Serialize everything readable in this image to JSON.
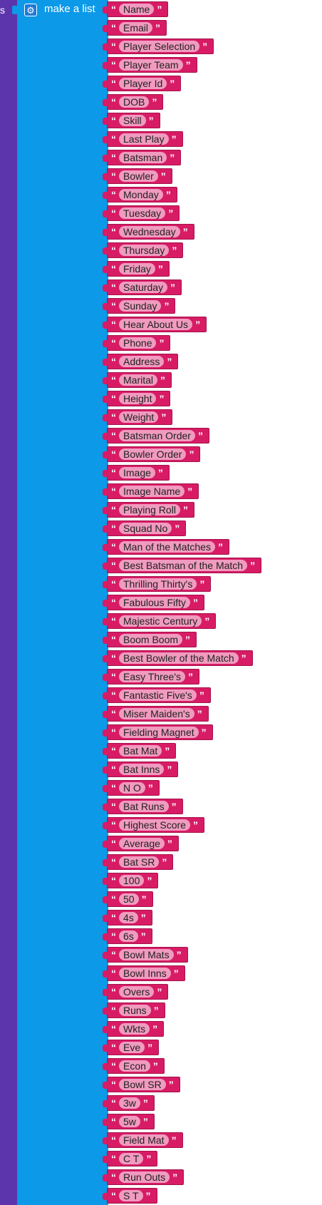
{
  "left_block": {
    "label": "s",
    "color": "#5c35ad"
  },
  "list_block": {
    "title": "make a list",
    "settings_icon": "gear-icon",
    "color": "#0b99e8"
  },
  "item_color": "#d81b65",
  "quote_open": "“",
  "quote_close": "”",
  "items": [
    "Name",
    "Email",
    "Player Selection",
    "Player Team",
    "Player Id",
    "DOB",
    "Skill",
    "Last Play",
    "Batsman",
    "Bowler",
    "Monday",
    "Tuesday",
    "Wednesday",
    "Thursday",
    "Friday",
    "Saturday",
    "Sunday",
    "Hear About Us",
    "Phone",
    "Address",
    "Marital",
    "Height",
    "Weight",
    "Batsman Order",
    "Bowler Order",
    "Image",
    "Image Name",
    "Playing Roll",
    "Squad No",
    "Man of the Matches",
    "Best Batsman of the Match",
    "Thrilling Thirty's",
    "Fabulous Fifty",
    "Majestic Century",
    "Boom Boom",
    "Best Bowler of the Match",
    "Easy Three's",
    "Fantastic Five's",
    "Miser Maiden's",
    "Fielding Magnet",
    "Bat Mat",
    "Bat Inns",
    "N O",
    "Bat Runs",
    "Highest Score",
    "Average",
    "Bat SR",
    "100",
    "50",
    "4s",
    "6s",
    "Bowl Mats",
    "Bowl Inns",
    "Overs",
    "Runs",
    "Wkts",
    "Eve",
    "Econ",
    "Bowl SR",
    "3w",
    "5w",
    "Field Mat",
    "C T",
    "Run Outs",
    "S T"
  ]
}
